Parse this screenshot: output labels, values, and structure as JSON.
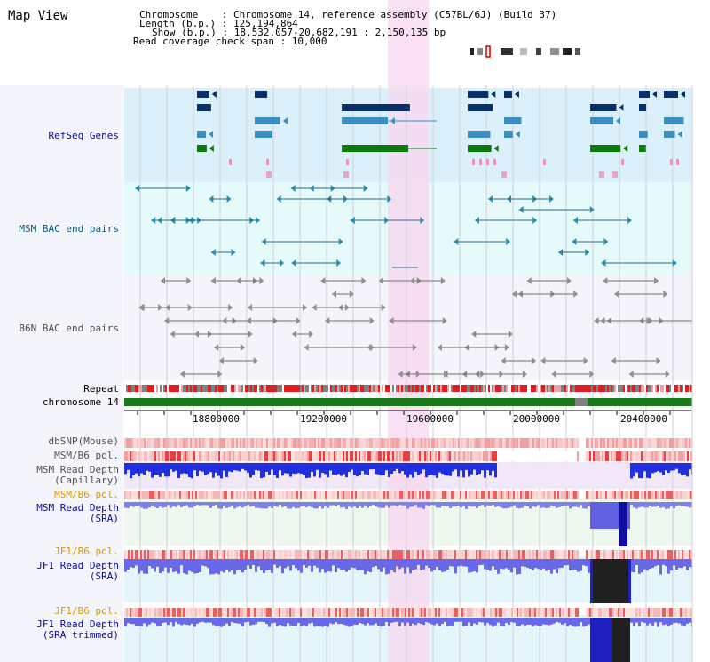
{
  "title": "Map View",
  "info": {
    "chromosome_line": "Chromosome    : Chromosome 14, reference assembly (C57BL/6J) (Build 37)",
    "length_line": "Length (b.p.) : 125,194,864",
    "show_line": "Show (b.p.) : 18,532,057-20,682,191 : 2,150,135 bp",
    "span_line": "Read coverage check span : 10,000"
  },
  "tracks": {
    "refseq": "RefSeq Genes",
    "msm_bac": "MSM BAC end pairs",
    "b6n_bac": "B6N BAC end pairs",
    "repeat": "Repeat",
    "chromosome": "chromosome 14",
    "dbsnp": "dbSNP(Mouse)",
    "msm_b6_pol": "MSM/B6 pol.",
    "msm_depth_cap_1": "MSM Read Depth",
    "msm_depth_cap_2": "(Capillary)",
    "msm_b6_pol_2": "MSM/B6 pol.",
    "msm_depth_sra_1": "MSM Read Depth",
    "msm_depth_sra_2": "(SRA)",
    "jf1_b6_pol": "JF1/B6 pol.",
    "jf1_depth_1": "JF1 Read Depth",
    "jf1_depth_2": "(SRA)",
    "jf1_b6_pol_2": "JF1/B6 pol.",
    "jf1_trim_1": "JF1 Read Depth",
    "jf1_trim_2": "(SRA trimmed)"
  },
  "ruler": {
    "ticks": [
      "18800000",
      "19200000",
      "19600000",
      "20000000",
      "20400000"
    ]
  },
  "colors": {
    "refseq_bg": "#dcf0fc",
    "msm_bac_bg": "#e6fafa",
    "b6n_bac_bg": "#f4f4fa",
    "highlight": "#f8d8f0",
    "chromosome_bar": "#1a7a1a",
    "depth_blue": "#1e32e6",
    "label_blue": "#0a0a96",
    "label_teal": "#0a5a78",
    "label_orange": "#dc9600"
  }
}
